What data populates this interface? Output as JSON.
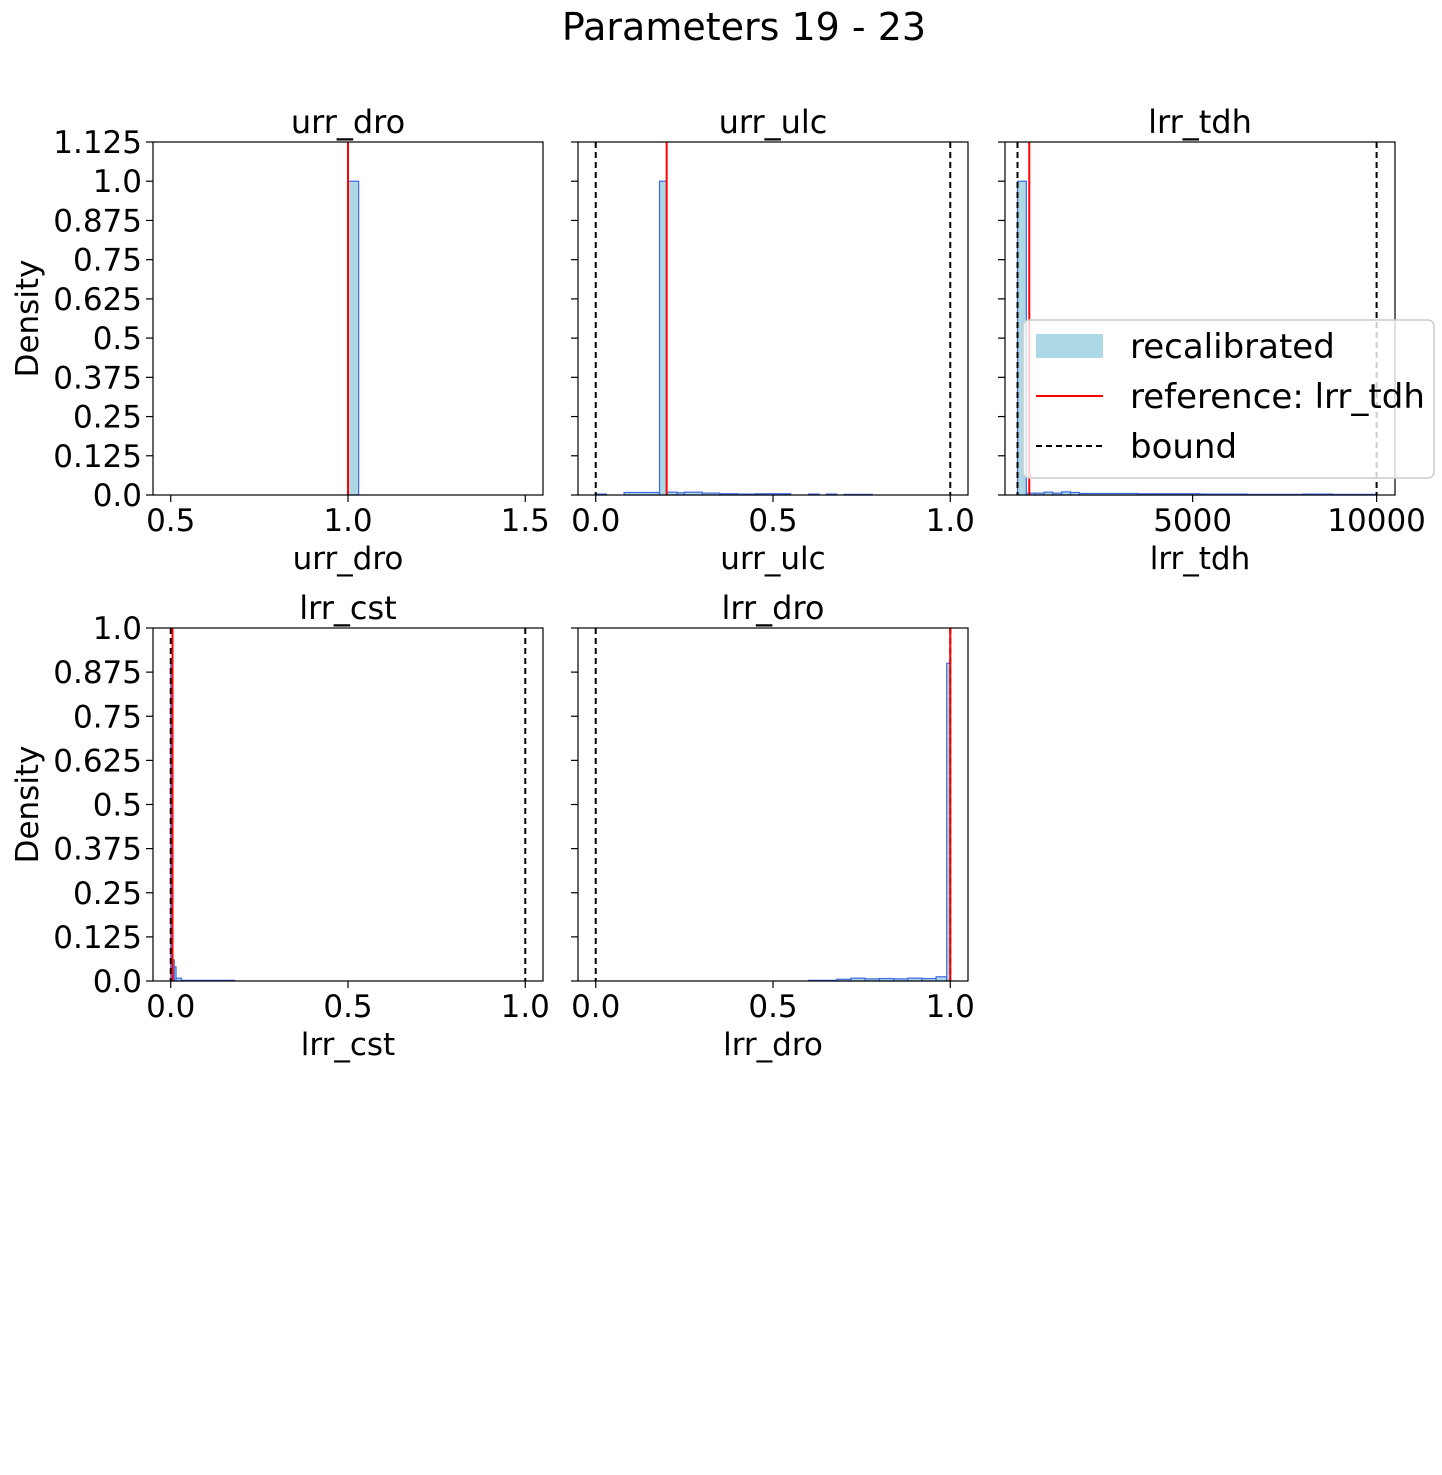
{
  "figure": {
    "title": "Parameters 19 - 23"
  },
  "legend": {
    "entries": [
      {
        "label": "recalibrated",
        "kind": "patch",
        "color": "#add8e6"
      },
      {
        "label": "reference: lrr_tdh",
        "kind": "line",
        "color": "#ff0000"
      },
      {
        "label": "bound",
        "kind": "dashed",
        "color": "#000000"
      }
    ],
    "panel": "lrr_tdh",
    "placement": "center-right"
  },
  "colors": {
    "hist_fill": "#add8e6",
    "hist_edge": "#4169e1",
    "reference": "#ff0000",
    "bound": "#000000"
  },
  "chart_data": [
    {
      "type": "bar",
      "title": "urr_dro",
      "xlabel": "urr_dro",
      "ylabel": "Density",
      "xlim": [
        0.45,
        1.55
      ],
      "ylim": [
        0,
        1.125
      ],
      "xticks": [
        0.5,
        1.0,
        1.5
      ],
      "xtick_labels": [
        "0.5",
        "1.0",
        "1.5"
      ],
      "yticks": [
        0,
        0.125,
        0.25,
        0.375,
        0.5,
        0.625,
        0.75,
        0.875,
        1.0,
        1.125
      ],
      "ytick_labels": [
        "0.0",
        "0.125",
        "0.25",
        "0.375",
        "0.5",
        "0.625",
        "0.75",
        "0.875",
        "1.0",
        "1.125"
      ],
      "show_ytick_labels": true,
      "reference": 1.0,
      "bounds": [
        1.0,
        1.0
      ],
      "bins": [
        [
          1.0,
          1.03,
          1.0
        ]
      ]
    },
    {
      "type": "bar",
      "title": "urr_ulc",
      "xlabel": "urr_ulc",
      "ylabel": "",
      "xlim": [
        -0.05,
        1.05
      ],
      "ylim": [
        0,
        1.125
      ],
      "xticks": [
        0.0,
        0.5,
        1.0
      ],
      "xtick_labels": [
        "0.0",
        "0.5",
        "1.0"
      ],
      "yticks": [
        0,
        0.125,
        0.25,
        0.375,
        0.5,
        0.625,
        0.75,
        0.875,
        1.0,
        1.125
      ],
      "ytick_labels": [],
      "show_ytick_labels": false,
      "reference": 0.2,
      "bounds": [
        0.0,
        1.0
      ],
      "bins": [
        [
          0.0,
          0.03,
          0.003
        ],
        [
          0.03,
          0.08,
          0.0
        ],
        [
          0.08,
          0.18,
          0.008
        ],
        [
          0.18,
          0.2,
          1.0
        ],
        [
          0.2,
          0.23,
          0.009
        ],
        [
          0.23,
          0.25,
          0.007
        ],
        [
          0.25,
          0.3,
          0.009
        ],
        [
          0.3,
          0.35,
          0.006
        ],
        [
          0.35,
          0.4,
          0.004
        ],
        [
          0.4,
          0.45,
          0.003
        ],
        [
          0.45,
          0.55,
          0.004
        ],
        [
          0.55,
          0.6,
          0.0
        ],
        [
          0.6,
          0.63,
          0.003
        ],
        [
          0.63,
          0.65,
          0.0
        ],
        [
          0.65,
          0.68,
          0.003
        ],
        [
          0.68,
          0.7,
          0.0
        ],
        [
          0.7,
          0.78,
          0.002
        ]
      ]
    },
    {
      "type": "bar",
      "title": "lrr_tdh",
      "xlabel": "lrr_tdh",
      "ylabel": "",
      "xlim": [
        -100,
        10500
      ],
      "ylim": [
        0,
        1.125
      ],
      "xticks": [
        5000,
        10000
      ],
      "xtick_labels": [
        "5000",
        "10000"
      ],
      "yticks": [
        0,
        0.125,
        0.25,
        0.375,
        0.5,
        0.625,
        0.75,
        0.875,
        1.0,
        1.125
      ],
      "ytick_labels": [],
      "show_ytick_labels": false,
      "reference": 560,
      "bounds": [
        240,
        10000
      ],
      "bins": [
        [
          240,
          480,
          1.0
        ],
        [
          480,
          720,
          0.006
        ],
        [
          720,
          960,
          0.006
        ],
        [
          960,
          1200,
          0.009
        ],
        [
          1200,
          1440,
          0.006
        ],
        [
          1440,
          1680,
          0.01
        ],
        [
          1680,
          1920,
          0.008
        ],
        [
          1920,
          3500,
          0.005
        ],
        [
          3500,
          5200,
          0.004
        ],
        [
          5200,
          6500,
          0.003
        ],
        [
          6500,
          8000,
          0.002
        ],
        [
          8000,
          8800,
          0.003
        ],
        [
          8800,
          10000,
          0.002
        ]
      ]
    },
    {
      "type": "bar",
      "title": "lrr_cst",
      "xlabel": "lrr_cst",
      "ylabel": "Density",
      "xlim": [
        -0.05,
        1.05
      ],
      "ylim": [
        0,
        1.0
      ],
      "xticks": [
        0.0,
        0.5,
        1.0
      ],
      "xtick_labels": [
        "0.0",
        "0.5",
        "1.0"
      ],
      "yticks": [
        0,
        0.125,
        0.25,
        0.375,
        0.5,
        0.625,
        0.75,
        0.875,
        1.0
      ],
      "ytick_labels": [
        "0.0",
        "0.125",
        "0.25",
        "0.375",
        "0.5",
        "0.625",
        "0.75",
        "0.875",
        "1.0"
      ],
      "show_ytick_labels": true,
      "reference": 0.005,
      "bounds": [
        0.0,
        1.0
      ],
      "bins": [
        [
          0.0,
          0.005,
          0.9
        ],
        [
          0.005,
          0.01,
          0.06
        ],
        [
          0.01,
          0.015,
          0.04
        ],
        [
          0.015,
          0.03,
          0.008
        ],
        [
          0.03,
          0.18,
          0.002
        ]
      ]
    },
    {
      "type": "bar",
      "title": "lrr_dro",
      "xlabel": "lrr_dro",
      "ylabel": "",
      "xlim": [
        -0.05,
        1.05
      ],
      "ylim": [
        0,
        1.0
      ],
      "xticks": [
        0.0,
        0.5,
        1.0
      ],
      "xtick_labels": [
        "0.0",
        "0.5",
        "1.0"
      ],
      "yticks": [
        0,
        0.125,
        0.25,
        0.375,
        0.5,
        0.625,
        0.75,
        0.875,
        1.0
      ],
      "ytick_labels": [],
      "show_ytick_labels": false,
      "reference": 1.0,
      "bounds": [
        0.0,
        1.0
      ],
      "bins": [
        [
          0.6,
          0.68,
          0.002
        ],
        [
          0.68,
          0.72,
          0.005
        ],
        [
          0.72,
          0.76,
          0.008
        ],
        [
          0.76,
          0.8,
          0.006
        ],
        [
          0.8,
          0.84,
          0.007
        ],
        [
          0.84,
          0.88,
          0.006
        ],
        [
          0.88,
          0.92,
          0.008
        ],
        [
          0.92,
          0.96,
          0.007
        ],
        [
          0.96,
          0.99,
          0.012
        ],
        [
          0.99,
          1.0,
          0.9
        ]
      ]
    }
  ]
}
